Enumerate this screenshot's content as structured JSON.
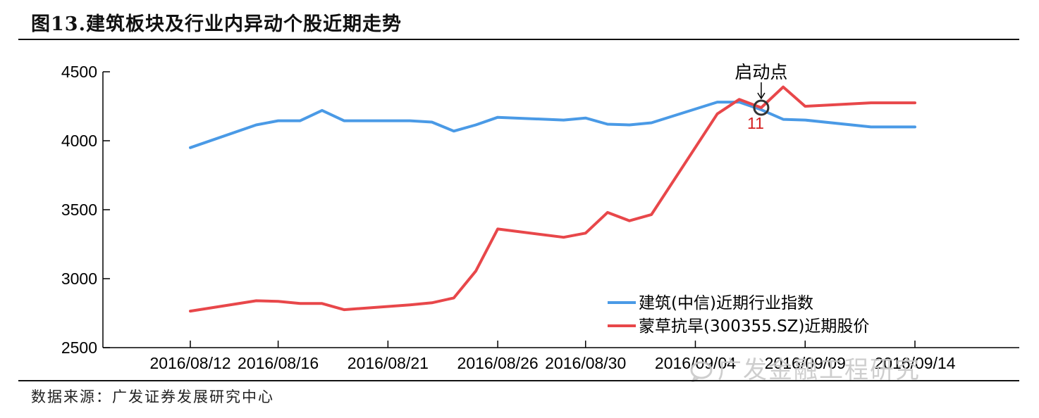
{
  "title": "图13.建筑板块及行业内异动个股近期走势",
  "source": "数据来源：广发证券发展研究中心",
  "watermark": "广发金融工程研究",
  "chart_data": {
    "type": "line",
    "ylim": [
      2500,
      4500
    ],
    "yticks": [
      2500,
      3000,
      3500,
      4000,
      4500
    ],
    "x": [
      "2016/08/12",
      "2016/08/15",
      "2016/08/16",
      "2016/08/17",
      "2016/08/18",
      "2016/08/19",
      "2016/08/22",
      "2016/08/23",
      "2016/08/24",
      "2016/08/25",
      "2016/08/26",
      "2016/08/29",
      "2016/08/30",
      "2016/08/31",
      "2016/09/01",
      "2016/09/02",
      "2016/09/05",
      "2016/09/06",
      "2016/09/07",
      "2016/09/08",
      "2016/09/09",
      "2016/09/12",
      "2016/09/13",
      "2016/09/14"
    ],
    "xtick_labels": [
      "2016/08/12",
      "2016/08/16",
      "2016/08/21",
      "2016/08/26",
      "2016/08/30",
      "2016/09/04",
      "2016/09/09",
      "2016/09/14"
    ],
    "xtick_dates": [
      "2016/08/12",
      "2016/08/16",
      "2016/08/21",
      "2016/08/26",
      "2016/08/30",
      "2016/09/04",
      "2016/09/09",
      "2016/09/14"
    ],
    "series": [
      {
        "name": "建筑(中信)近期行业指数",
        "color": "#4a9ae6",
        "values": [
          3950,
          4115,
          4145,
          4145,
          4220,
          4145,
          4145,
          4135,
          4070,
          4115,
          4170,
          4150,
          4165,
          4120,
          4115,
          4130,
          4280,
          4280,
          4225,
          4155,
          4150,
          4100,
          4100,
          4100
        ]
      },
      {
        "name": "蒙草抗旱(300355.SZ)近期股价",
        "color": "#e8474a",
        "values": [
          2765,
          2840,
          2835,
          2820,
          2820,
          2775,
          2810,
          2825,
          2860,
          3055,
          3360,
          3300,
          3330,
          3480,
          3420,
          3465,
          4195,
          4300,
          4240,
          4390,
          4250,
          4275,
          4275,
          4275
        ]
      }
    ],
    "legend_position": "lower-right",
    "annotation": {
      "label": "启动点",
      "value_label": "11",
      "x": "2016/09/07",
      "y": 4240
    }
  }
}
